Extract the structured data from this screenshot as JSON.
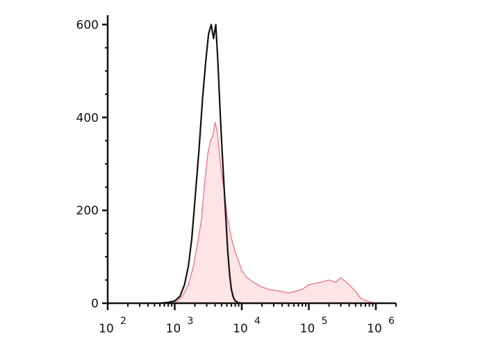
{
  "chart_data": {
    "type": "area",
    "title": "",
    "xlabel": "",
    "ylabel": "",
    "x_scale": "log",
    "xlim": [
      100,
      2000000
    ],
    "ylim": [
      0,
      620
    ],
    "grid": false,
    "legend": "none",
    "y_ticks": [
      {
        "value": 0,
        "label": "0"
      },
      {
        "value": 200,
        "label": "200"
      },
      {
        "value": 400,
        "label": "400"
      },
      {
        "value": 600,
        "label": "600"
      }
    ],
    "x_ticks": [
      {
        "value": 100,
        "base": "10",
        "exp": "2"
      },
      {
        "value": 1000,
        "base": "10",
        "exp": "3"
      },
      {
        "value": 10000,
        "base": "10",
        "exp": "4"
      },
      {
        "value": 100000,
        "base": "10",
        "exp": "5"
      },
      {
        "value": 1000000,
        "base": "10",
        "exp": "6"
      }
    ],
    "series": [
      {
        "style": "line",
        "color": "#111111",
        "x": [
          600,
          800,
          1000,
          1200,
          1400,
          1600,
          1800,
          2000,
          2300,
          2600,
          2900,
          3200,
          3500,
          3800,
          4100,
          4400,
          4700,
          5000,
          5400,
          5800,
          6200,
          6600,
          7000,
          7500,
          8000,
          9000,
          10000
        ],
        "y": [
          0,
          2,
          5,
          15,
          40,
          80,
          140,
          220,
          330,
          440,
          520,
          580,
          600,
          570,
          600,
          520,
          430,
          350,
          260,
          180,
          110,
          60,
          30,
          12,
          5,
          1,
          0
        ]
      },
      {
        "style": "filled",
        "color": "#f07080",
        "fill": "#fde4e6",
        "x": [
          900,
          1100,
          1300,
          1600,
          1900,
          2200,
          2500,
          2800,
          3100,
          3400,
          3700,
          4000,
          4300,
          4600,
          5000,
          5500,
          6000,
          7000,
          8000,
          9000,
          10000,
          12000,
          15000,
          20000,
          25000,
          30000,
          40000,
          50000,
          60000,
          80000,
          100000,
          150000,
          200000,
          250000,
          300000,
          400000,
          500000,
          600000,
          800000,
          1000000
        ],
        "y": [
          0,
          5,
          15,
          40,
          80,
          130,
          180,
          260,
          320,
          350,
          360,
          390,
          370,
          330,
          280,
          240,
          190,
          140,
          110,
          90,
          70,
          55,
          45,
          35,
          30,
          28,
          25,
          22,
          25,
          30,
          40,
          45,
          50,
          45,
          55,
          40,
          25,
          10,
          3,
          0
        ]
      }
    ]
  }
}
